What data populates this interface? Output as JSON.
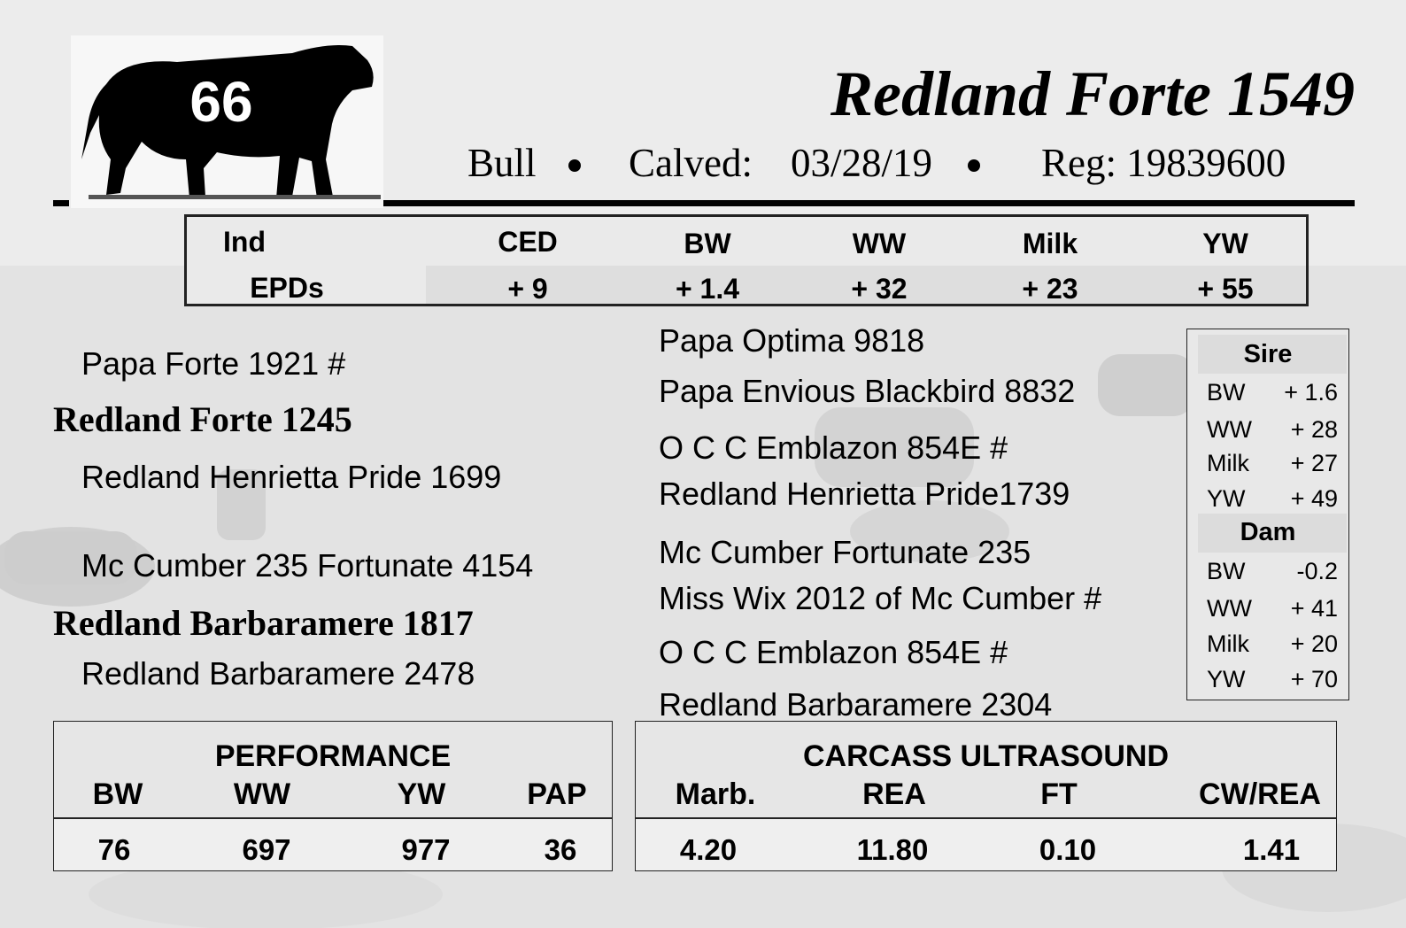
{
  "lot": {
    "number": "66"
  },
  "animal": {
    "name": "Redland Forte 1549",
    "sex": "Bull",
    "calved_label": "Calved:",
    "calved_date": "03/28/19",
    "reg": "Reg: 19839600"
  },
  "epd": {
    "label_line1": "Ind",
    "label_line2": "EPDs",
    "columns": [
      {
        "name": "CED",
        "value": "+ 9"
      },
      {
        "name": "BW",
        "value": "+ 1.4"
      },
      {
        "name": "WW",
        "value": "+ 32"
      },
      {
        "name": "Milk",
        "value": "+ 23"
      },
      {
        "name": "YW",
        "value": "+ 55"
      }
    ]
  },
  "pedigree": {
    "sire": "Redland Forte 1245",
    "sire_sire": "Papa Forte 1921 #",
    "sire_dam": "Redland Henrietta Pride 1699",
    "dam": "Redland Barbaramere 1817",
    "dam_sire": "Mc Cumber 235 Fortunate 4154",
    "dam_dam": "Redland Barbaramere 2478",
    "ggp": [
      "Papa Optima 9818",
      "Papa Envious Blackbird 8832",
      "O C C Emblazon 854E #",
      "Redland Henrietta Pride1739",
      "Mc Cumber Fortunate 235",
      "Miss Wix 2012 of Mc Cumber #",
      "O C C Emblazon 854E #",
      "Redland Barbaramere 2304"
    ]
  },
  "parent_epds": {
    "sire_title": "Sire",
    "sire": [
      {
        "trait": "BW",
        "value": "+ 1.6"
      },
      {
        "trait": "WW",
        "value": "+ 28"
      },
      {
        "trait": "Milk",
        "value": "+ 27"
      },
      {
        "trait": "YW",
        "value": "+ 49"
      }
    ],
    "dam_title": "Dam",
    "dam": [
      {
        "trait": "BW",
        "value": "-0.2"
      },
      {
        "trait": "WW",
        "value": "+ 41"
      },
      {
        "trait": "Milk",
        "value": "+ 20"
      },
      {
        "trait": "YW",
        "value": "+ 70"
      }
    ]
  },
  "performance": {
    "title": "PERFORMANCE",
    "headers": [
      "BW",
      "WW",
      "YW",
      "PAP"
    ],
    "values": [
      "76",
      "697",
      "977",
      "36"
    ]
  },
  "carcass": {
    "title": "CARCASS ULTRASOUND",
    "headers": [
      "Marb.",
      "REA",
      "FT",
      "CW/REA"
    ],
    "values": [
      "4.20",
      "11.80",
      "0.10",
      "1.41"
    ]
  }
}
